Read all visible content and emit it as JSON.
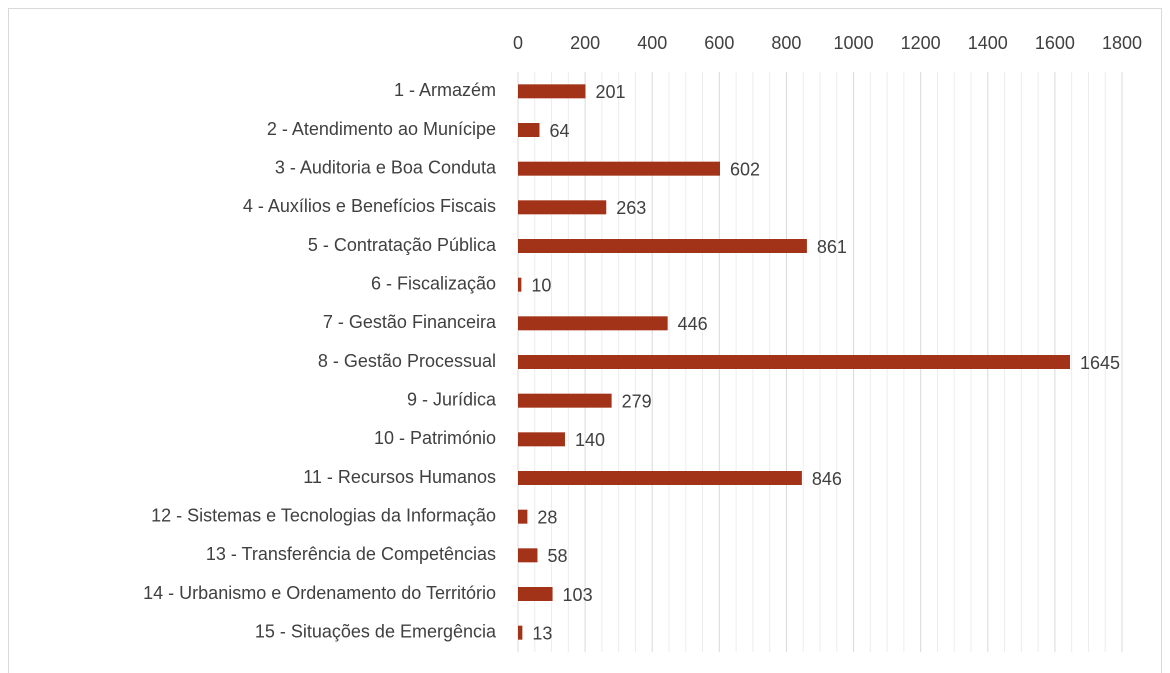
{
  "chart_data": {
    "type": "hbar",
    "categories": [
      "1 - Armazém",
      "2 - Atendimento ao Munícipe",
      "3 - Auditoria e Boa Conduta",
      "4 - Auxílios e Benefícios Fiscais",
      "5 - Contratação Pública",
      "6 - Fiscalização",
      "7 - Gestão Financeira",
      "8 - Gestão Processual",
      "9 - Jurídica",
      "10 - Património",
      "11 - Recursos Humanos",
      "12 - Sistemas e Tecnologias da Informação",
      "13 - Transferência de Competências",
      "14 - Urbanismo e Ordenamento do Território",
      "15 - Situações de Emergência"
    ],
    "values": [
      201,
      64,
      602,
      263,
      861,
      10,
      446,
      1645,
      279,
      140,
      846,
      28,
      58,
      103,
      13
    ],
    "color": "#a33318",
    "xlim": [
      0,
      1800
    ],
    "xticks": [
      0,
      200,
      400,
      600,
      800,
      1000,
      1200,
      1400,
      1600,
      1800
    ],
    "grid": true,
    "minor_grid": true
  }
}
